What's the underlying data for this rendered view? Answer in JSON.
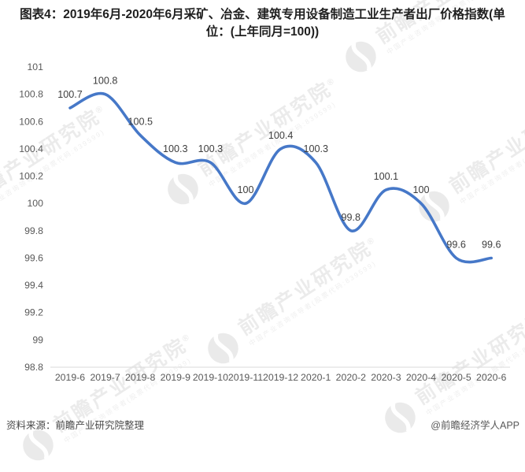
{
  "title": "图表4：2019年6月-2020年6月采矿、冶金、建筑专用设备制造工业生产者出厂价格指数(单位：(上年同月=100))",
  "chart_data": {
    "type": "line",
    "title": "图表4：2019年6月-2020年6月采矿、冶金、建筑专用设备制造工业生产者出厂价格指数(单位：(上年同月=100))",
    "categories": [
      "2019-6",
      "2019-7",
      "2019-8",
      "2019-9",
      "2019-10",
      "2019-11",
      "2019-12",
      "2020-1",
      "2020-2",
      "2020-3",
      "2020-4",
      "2020-5",
      "2020-6"
    ],
    "values": [
      100.7,
      100.8,
      100.5,
      100.3,
      100.3,
      100,
      100.4,
      100.3,
      99.8,
      100.1,
      100,
      99.6,
      99.6
    ],
    "data_labels": [
      "100.7",
      "100.8",
      "100.5",
      "100.3",
      "100.3",
      "100",
      "100.4",
      "100.3",
      "99.8",
      "100.1",
      "100",
      "99.6",
      "99.6"
    ],
    "yticks": [
      "101",
      "100.8",
      "100.6",
      "100.4",
      "100.2",
      "100",
      "99.8",
      "99.6",
      "99.4",
      "99.2",
      "99",
      "98.8"
    ],
    "ytick_values": [
      101,
      100.8,
      100.6,
      100.4,
      100.2,
      100,
      99.8,
      99.6,
      99.4,
      99.2,
      99,
      98.8
    ],
    "ylim": [
      98.8,
      101
    ],
    "xlabel": "",
    "ylabel": "",
    "grid": false,
    "legend": "none",
    "smooth": true,
    "line_color": "#4678c8",
    "axis_color": "#d9d9d9",
    "tick_label_color": "#595959",
    "data_label_color": "#3d3d3d"
  },
  "watermark": {
    "brand": "前瞻产业研究院",
    "reg": "®",
    "sub": "中国产业咨询领导者(股票代码:839599)"
  },
  "footer": {
    "source": "资料来源：前瞻产业研究院整理",
    "credit": "@前瞻经济学人APP"
  }
}
